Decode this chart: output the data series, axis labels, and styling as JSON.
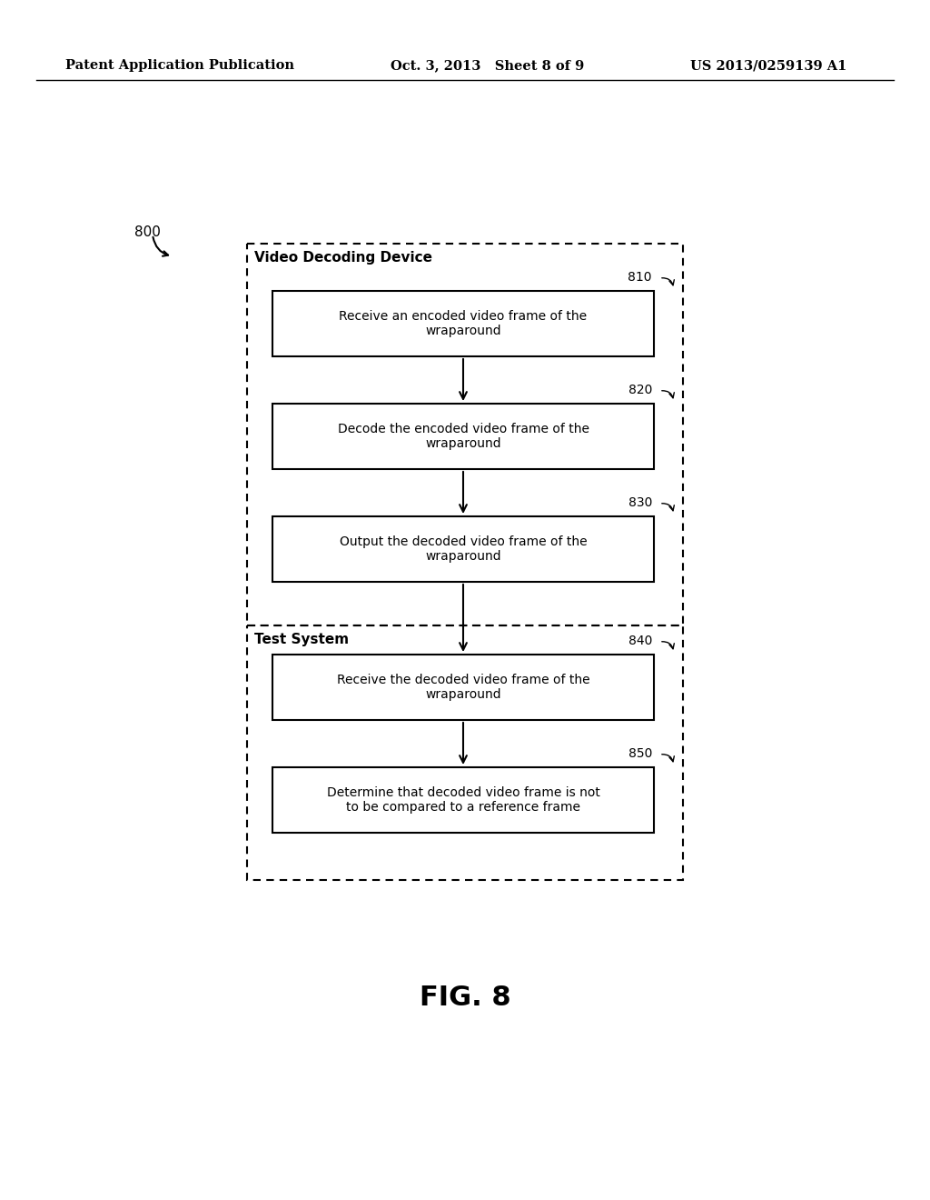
{
  "bg_color": "#ffffff",
  "header_left": "Patent Application Publication",
  "header_mid": "Oct. 3, 2013   Sheet 8 of 9",
  "header_right": "US 2013/0259139 A1",
  "fig_label": "FIG. 8",
  "diagram_label": "800",
  "vdd_label": "Video Decoding Device",
  "ts_label": "Test System",
  "steps": [
    {
      "id": "810",
      "text": "Receive an encoded video frame of the\nwraparound"
    },
    {
      "id": "820",
      "text": "Decode the encoded video frame of the\nwraparound"
    },
    {
      "id": "830",
      "text": "Output the decoded video frame of the\nwraparound"
    },
    {
      "id": "840",
      "text": "Receive the decoded video frame of the\nwraparound"
    },
    {
      "id": "850",
      "text": "Determine that decoded video frame is not\nto be compared to a reference frame"
    }
  ]
}
